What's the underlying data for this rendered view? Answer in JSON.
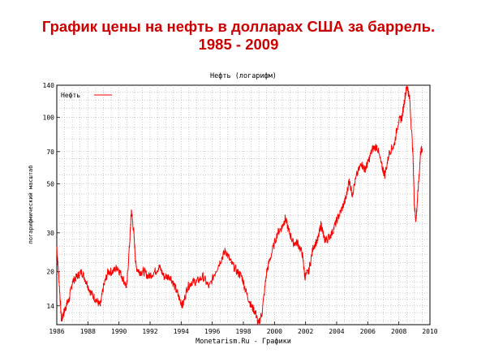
{
  "slide": {
    "title_line1": "График цены на нефть в долларах США за баррель.",
    "title_line2": "1985 - 2009"
  },
  "chart_data": {
    "type": "line",
    "title": "Нефть  (логарифм)",
    "xlabel": "Monetarism.Ru - Графики",
    "ylabel": "логарифмический масштаб",
    "y_scale": "log",
    "xlim": [
      1986,
      2010
    ],
    "ylim": [
      11.5,
      140
    ],
    "x_ticks": [
      1986,
      1988,
      1990,
      1992,
      1994,
      1996,
      1998,
      2000,
      2002,
      2004,
      2006,
      2008,
      2010
    ],
    "y_ticks": [
      14,
      20,
      30,
      50,
      70,
      100,
      140
    ],
    "grid": true,
    "legend": "top-left",
    "line_color": "#ff0000",
    "series": [
      {
        "name": "Нефть",
        "x": [
          1986.0,
          1986.15,
          1986.3,
          1986.45,
          1986.6,
          1986.8,
          1987.0,
          1987.3,
          1987.6,
          1987.9,
          1988.2,
          1988.5,
          1988.8,
          1989.0,
          1989.3,
          1989.6,
          1989.9,
          1990.2,
          1990.5,
          1990.7,
          1990.8,
          1990.95,
          1991.1,
          1991.3,
          1991.6,
          1991.9,
          1992.3,
          1992.6,
          1992.9,
          1993.3,
          1993.6,
          1993.9,
          1994.1,
          1994.4,
          1994.7,
          1995.0,
          1995.4,
          1995.8,
          1996.2,
          1996.6,
          1996.85,
          1997.2,
          1997.6,
          1997.9,
          1998.2,
          1998.5,
          1998.8,
          1998.95,
          1999.2,
          1999.5,
          1999.8,
          2000.2,
          2000.5,
          2000.7,
          2000.9,
          2001.2,
          2001.5,
          2001.8,
          2001.95,
          2002.2,
          2002.5,
          2002.8,
          2003.0,
          2003.2,
          2003.4,
          2003.7,
          2004.0,
          2004.3,
          2004.6,
          2004.8,
          2005.0,
          2005.3,
          2005.6,
          2005.8,
          2006.0,
          2006.3,
          2006.6,
          2006.9,
          2007.1,
          2007.4,
          2007.7,
          2007.95,
          2008.2,
          2008.4,
          2008.53,
          2008.7,
          2008.9,
          2009.0,
          2009.1,
          2009.25,
          2009.4,
          2009.5
        ],
        "values": [
          26,
          18,
          12,
          13,
          14,
          15,
          18,
          19,
          20,
          18,
          16,
          15,
          14,
          17,
          20,
          20,
          21,
          19,
          17,
          28,
          38,
          30,
          21,
          20,
          20,
          19,
          20,
          21,
          19,
          19,
          17,
          15,
          14,
          17,
          18,
          18,
          19,
          17,
          20,
          23,
          25,
          22,
          20,
          19,
          16,
          14,
          13,
          11.5,
          13,
          20,
          24,
          30,
          32,
          35,
          31,
          27,
          27,
          24,
          19,
          20,
          26,
          28,
          33,
          28,
          28,
          30,
          34,
          38,
          43,
          52,
          45,
          55,
          62,
          58,
          62,
          72,
          74,
          60,
          55,
          70,
          75,
          95,
          100,
          125,
          140,
          120,
          70,
          40,
          34,
          48,
          70,
          72
        ]
      }
    ]
  }
}
